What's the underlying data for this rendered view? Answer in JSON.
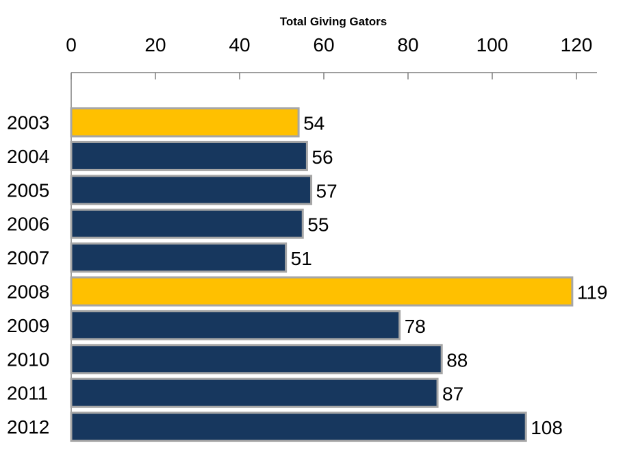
{
  "chart_data": {
    "type": "bar",
    "orientation": "horizontal",
    "title": "Total Giving Gators",
    "xlabel": "",
    "ylabel": "",
    "xlim": [
      0,
      125
    ],
    "x_ticks": [
      0,
      20,
      40,
      60,
      80,
      100,
      120
    ],
    "x_axis_position": "top",
    "grid": false,
    "categories": [
      "2003",
      "2004",
      "2005",
      "2006",
      "2007",
      "2008",
      "2009",
      "2010",
      "2011",
      "2012"
    ],
    "values": [
      54,
      56,
      57,
      55,
      51,
      119,
      78,
      88,
      87,
      108
    ],
    "highlighted": [
      "2003",
      "2008"
    ],
    "colors": {
      "default": "#17375e",
      "highlight": "#ffc000",
      "bar_border": "#a6a6a6"
    }
  }
}
